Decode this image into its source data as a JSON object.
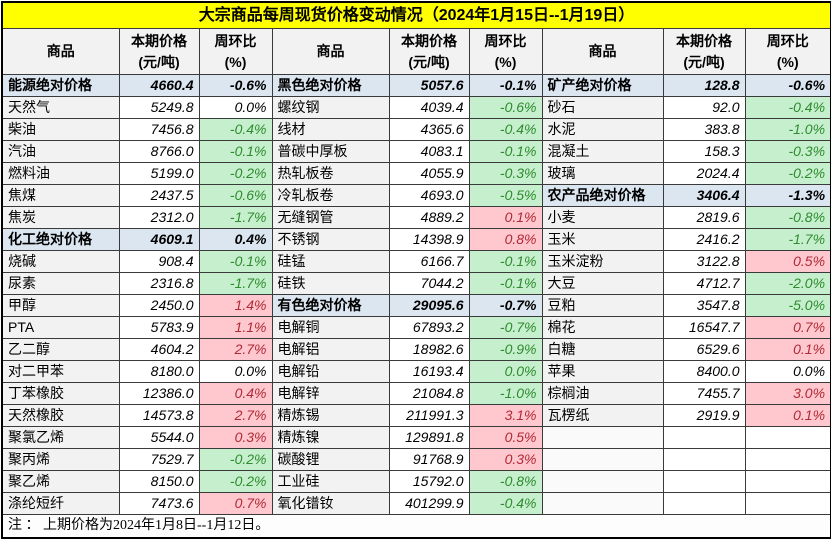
{
  "title": "大宗商品每周现货价格变动情况（2024年1月15日--1月19日）",
  "footnote": "注 ： 上期价格为2024年1月8日--1月12日。",
  "columns": {
    "commodity": "商品",
    "price_line1": "本期价格",
    "price_line2": "(元/吨)",
    "pct_line1": "周环比",
    "pct_line2": "(%)"
  },
  "colors": {
    "title_bg": "#FFFF00",
    "section_bg": "#DCE6F1",
    "down_bg": "#C6EFCE",
    "down_text": "#2E8B2E",
    "up_bg": "#FFC7CE",
    "up_text": "#B02A37",
    "header_bg": "#F2F2F2"
  },
  "chart_data": {
    "type": "table",
    "title": "大宗商品每周现货价格变动情况（2024年1月15日--1月19日）",
    "column_headers": [
      "商品",
      "本期价格(元/吨)",
      "周环比(%)",
      "商品",
      "本期价格(元/吨)",
      "周环比(%)",
      "商品",
      "本期价格(元/吨)",
      "周环比(%)"
    ],
    "legend_note": "style: section=蓝色汇总行, down=绿色下跌, up=红色上涨, plain=无色持平, empty=空行",
    "groups": [
      {
        "rows": [
          [
            "能源绝对价格",
            "4660.4",
            "-0.6%",
            "section"
          ],
          [
            "天然气",
            "5249.8",
            "0.0%",
            "plain"
          ],
          [
            "柴油",
            "7456.8",
            "-0.4%",
            "down"
          ],
          [
            "汽油",
            "8766.0",
            "-0.1%",
            "down"
          ],
          [
            "燃料油",
            "5199.0",
            "-0.2%",
            "down"
          ],
          [
            "焦煤",
            "2437.5",
            "-0.6%",
            "down"
          ],
          [
            "焦炭",
            "2312.0",
            "-1.7%",
            "down"
          ],
          [
            "化工绝对价格",
            "4609.1",
            "0.4%",
            "section"
          ],
          [
            "烧碱",
            "908.4",
            "-0.1%",
            "down"
          ],
          [
            "尿素",
            "2316.8",
            "-1.7%",
            "down"
          ],
          [
            "甲醇",
            "2450.0",
            "1.4%",
            "up"
          ],
          [
            "PTA",
            "5783.9",
            "1.1%",
            "up"
          ],
          [
            "乙二醇",
            "4604.2",
            "2.7%",
            "up"
          ],
          [
            "对二甲苯",
            "8180.0",
            "0.0%",
            "plain"
          ],
          [
            "丁苯橡胶",
            "12386.0",
            "0.4%",
            "up"
          ],
          [
            "天然橡胶",
            "14573.8",
            "2.7%",
            "up"
          ],
          [
            "聚氯乙烯",
            "5544.0",
            "0.3%",
            "up"
          ],
          [
            "聚丙烯",
            "7529.7",
            "-0.2%",
            "down"
          ],
          [
            "聚乙烯",
            "8150.0",
            "-0.2%",
            "down"
          ],
          [
            "涤纶短纤",
            "7473.6",
            "0.7%",
            "up"
          ]
        ]
      },
      {
        "rows": [
          [
            "黑色绝对价格",
            "5057.6",
            "-0.1%",
            "section"
          ],
          [
            "螺纹钢",
            "4039.4",
            "-0.6%",
            "down"
          ],
          [
            "线材",
            "4365.6",
            "-0.4%",
            "down"
          ],
          [
            "普碳中厚板",
            "4083.1",
            "-0.1%",
            "down"
          ],
          [
            "热轧板卷",
            "4055.9",
            "-0.3%",
            "down"
          ],
          [
            "冷轧板卷",
            "4693.0",
            "-0.5%",
            "down"
          ],
          [
            "无缝钢管",
            "4889.2",
            "0.1%",
            "up"
          ],
          [
            "不锈钢",
            "14398.9",
            "0.8%",
            "up"
          ],
          [
            "硅锰",
            "6166.7",
            "-0.1%",
            "down"
          ],
          [
            "硅铁",
            "7044.2",
            "-0.1%",
            "down"
          ],
          [
            "有色绝对价格",
            "29095.6",
            "-0.7%",
            "section"
          ],
          [
            "电解铜",
            "67893.2",
            "-0.7%",
            "down"
          ],
          [
            "电解铝",
            "18982.6",
            "-0.9%",
            "down"
          ],
          [
            "电解铅",
            "16193.4",
            "0.0%",
            "down"
          ],
          [
            "电解锌",
            "21084.8",
            "-1.0%",
            "down"
          ],
          [
            "精炼锡",
            "211991.3",
            "3.1%",
            "up"
          ],
          [
            "精炼镍",
            "129891.8",
            "0.5%",
            "up"
          ],
          [
            "碳酸锂",
            "91768.9",
            "0.3%",
            "up"
          ],
          [
            "工业硅",
            "15792.0",
            "-0.8%",
            "down"
          ],
          [
            "氧化镨钕",
            "401299.9",
            "-0.4%",
            "down"
          ]
        ]
      },
      {
        "rows": [
          [
            "矿产绝对价格",
            "128.8",
            "-0.6%",
            "section"
          ],
          [
            "砂石",
            "92.0",
            "-0.4%",
            "down"
          ],
          [
            "水泥",
            "383.8",
            "-1.0%",
            "down"
          ],
          [
            "混凝土",
            "158.3",
            "-0.3%",
            "down"
          ],
          [
            "玻璃",
            "2024.4",
            "-0.2%",
            "down"
          ],
          [
            "农产品绝对价格",
            "3406.4",
            "-1.3%",
            "section"
          ],
          [
            "小麦",
            "2819.6",
            "-0.8%",
            "down"
          ],
          [
            "玉米",
            "2416.2",
            "-1.7%",
            "down"
          ],
          [
            "玉米淀粉",
            "3122.8",
            "0.5%",
            "up"
          ],
          [
            "大豆",
            "4712.7",
            "-2.0%",
            "down"
          ],
          [
            "豆粕",
            "3547.8",
            "-5.0%",
            "down"
          ],
          [
            "棉花",
            "16547.7",
            "0.7%",
            "up"
          ],
          [
            "白糖",
            "6529.6",
            "0.1%",
            "up"
          ],
          [
            "苹果",
            "8400.0",
            "0.0%",
            "plain"
          ],
          [
            "棕榈油",
            "7455.7",
            "3.0%",
            "up"
          ],
          [
            "瓦楞纸",
            "2919.9",
            "0.1%",
            "up"
          ],
          [
            "",
            "",
            "",
            "empty"
          ],
          [
            "",
            "",
            "",
            "empty"
          ],
          [
            "",
            "",
            "",
            "empty"
          ],
          [
            "",
            "",
            "",
            "empty"
          ]
        ]
      }
    ]
  }
}
